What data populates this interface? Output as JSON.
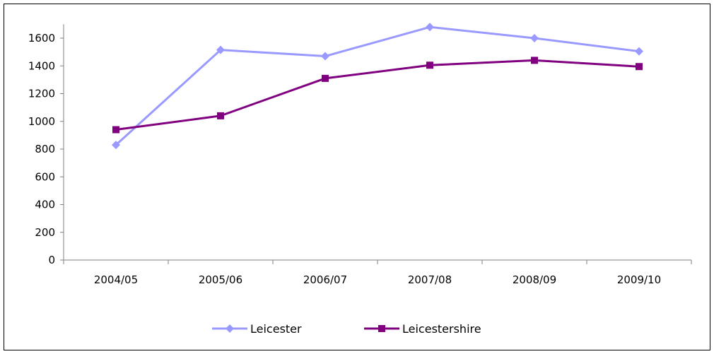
{
  "chart_data": {
    "type": "line",
    "categories": [
      "2004/05",
      "2005/06",
      "2006/07",
      "2007/08",
      "2008/09",
      "2009/10"
    ],
    "series": [
      {
        "name": "Leicester",
        "color": "#9999ff",
        "marker": "diamond",
        "values": [
          830,
          1515,
          1470,
          1680,
          1600,
          1505
        ]
      },
      {
        "name": "Leicestershire",
        "color": "#800080",
        "marker": "square",
        "values": [
          940,
          1040,
          1310,
          1405,
          1440,
          1395
        ]
      }
    ],
    "y_ticks": [
      "0",
      "200",
      "400",
      "600",
      "800",
      "1000",
      "1200",
      "1400",
      "1600"
    ],
    "ylim": [
      0,
      1700
    ],
    "grid": false,
    "legend_position": "bottom"
  }
}
